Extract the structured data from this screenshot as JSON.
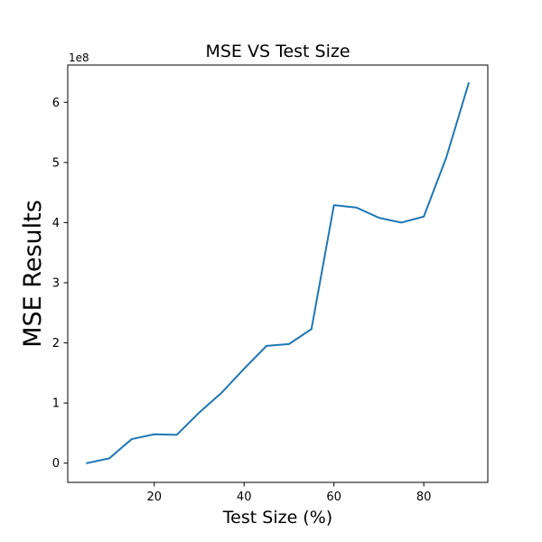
{
  "chart_data": {
    "type": "line",
    "title": "MSE VS Test Size",
    "xlabel": "Test Size (%)",
    "ylabel": "MSE Results",
    "y_offset_label": "1e8",
    "xlim": [
      0.75,
      94.25
    ],
    "ylim": [
      -0.32,
      6.62
    ],
    "x_ticks": [
      20,
      40,
      60,
      80
    ],
    "x_tick_labels": [
      "20",
      "40",
      "60",
      "80"
    ],
    "y_ticks": [
      0,
      1,
      2,
      3,
      4,
      5,
      6
    ],
    "y_tick_labels": [
      "0",
      "1",
      "2",
      "3",
      "4",
      "5",
      "6"
    ],
    "grid": false,
    "series": [
      {
        "color": "#1f77b4",
        "x": [
          5,
          10,
          15,
          20,
          25,
          30,
          35,
          40,
          45,
          50,
          55,
          60,
          65,
          70,
          75,
          80,
          85,
          90
        ],
        "y": [
          0.0,
          0.08,
          0.4,
          0.48,
          0.47,
          0.84,
          1.17,
          1.57,
          1.95,
          1.98,
          2.23,
          4.29,
          4.25,
          4.08,
          4.0,
          4.1,
          5.08,
          6.32
        ]
      }
    ]
  }
}
